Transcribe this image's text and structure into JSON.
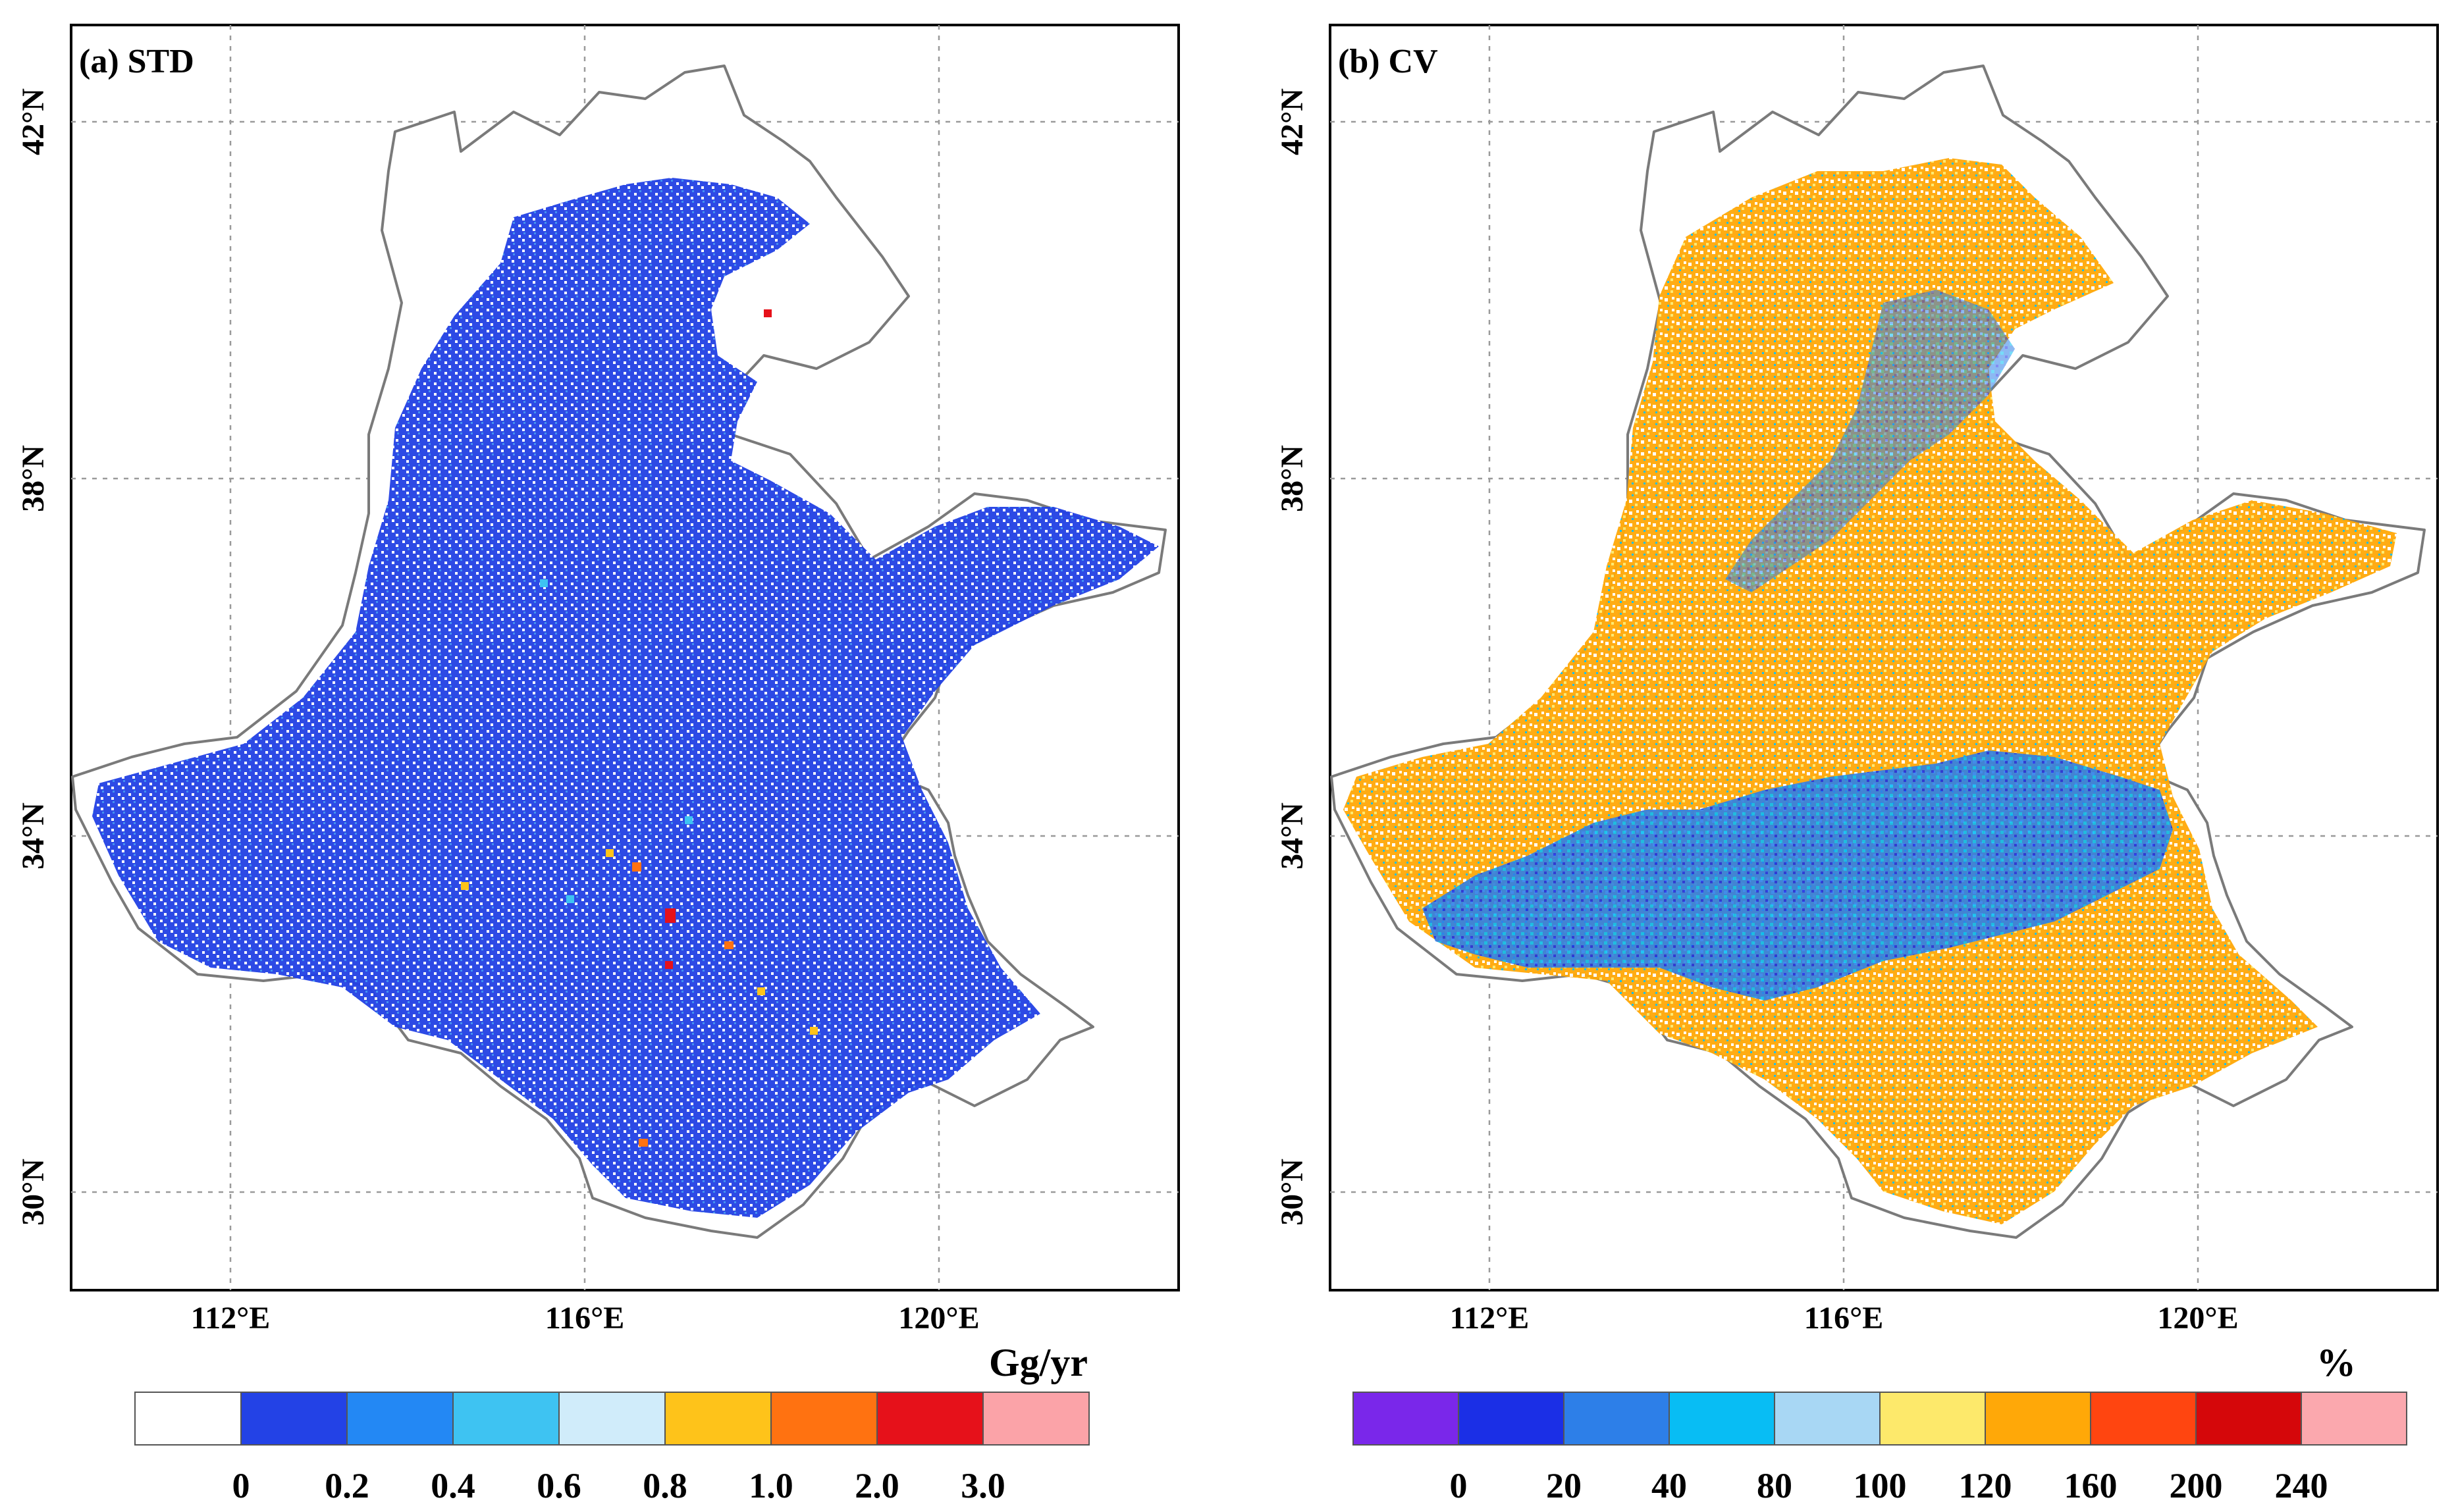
{
  "chart_data": [
    {
      "type": "heatmap",
      "title": "(a) STD",
      "xticks": [
        "112°E",
        "116°E",
        "120°E"
      ],
      "yticks": [
        "42°N",
        "38°N",
        "34°N",
        "30°N"
      ],
      "lon_range": [
        109.8,
        122.8
      ],
      "lat_range": [
        29.0,
        43.1
      ],
      "xtick_values": [
        112,
        116,
        120
      ],
      "ytick_values": [
        42,
        38,
        34,
        30
      ],
      "colorbar": {
        "unit": "Gg/yr",
        "colors": [
          "#ffffff",
          "#2342e6",
          "#2388f4",
          "#3ec3f2",
          "#d0ecfa",
          "#fec31a",
          "#ff7211",
          "#e6111a",
          "#fba3a8"
        ],
        "labels": [
          "0",
          "0.2",
          "0.4",
          "0.6",
          "0.8",
          "1.0",
          "2.0",
          "3.0"
        ]
      }
    },
    {
      "type": "heatmap",
      "title": "(b) CV",
      "xticks": [
        "112°E",
        "116°E",
        "120°E"
      ],
      "yticks": [
        "42°N",
        "38°N",
        "34°N",
        "30°N"
      ],
      "lon_range": [
        109.8,
        122.8
      ],
      "lat_range": [
        29.0,
        43.1
      ],
      "xtick_values": [
        112,
        116,
        120
      ],
      "ytick_values": [
        42,
        38,
        34,
        30
      ],
      "colorbar": {
        "unit": "%",
        "colors": [
          "#7a27ea",
          "#1b2fe6",
          "#2d7fe8",
          "#08bdf4",
          "#a8d7f4",
          "#fde96b",
          "#ffa808",
          "#ff4510",
          "#d5070a",
          "#fba8ae"
        ],
        "labels": [
          "0",
          "20",
          "40",
          "80",
          "100",
          "120",
          "160",
          "200",
          "240"
        ]
      }
    }
  ]
}
